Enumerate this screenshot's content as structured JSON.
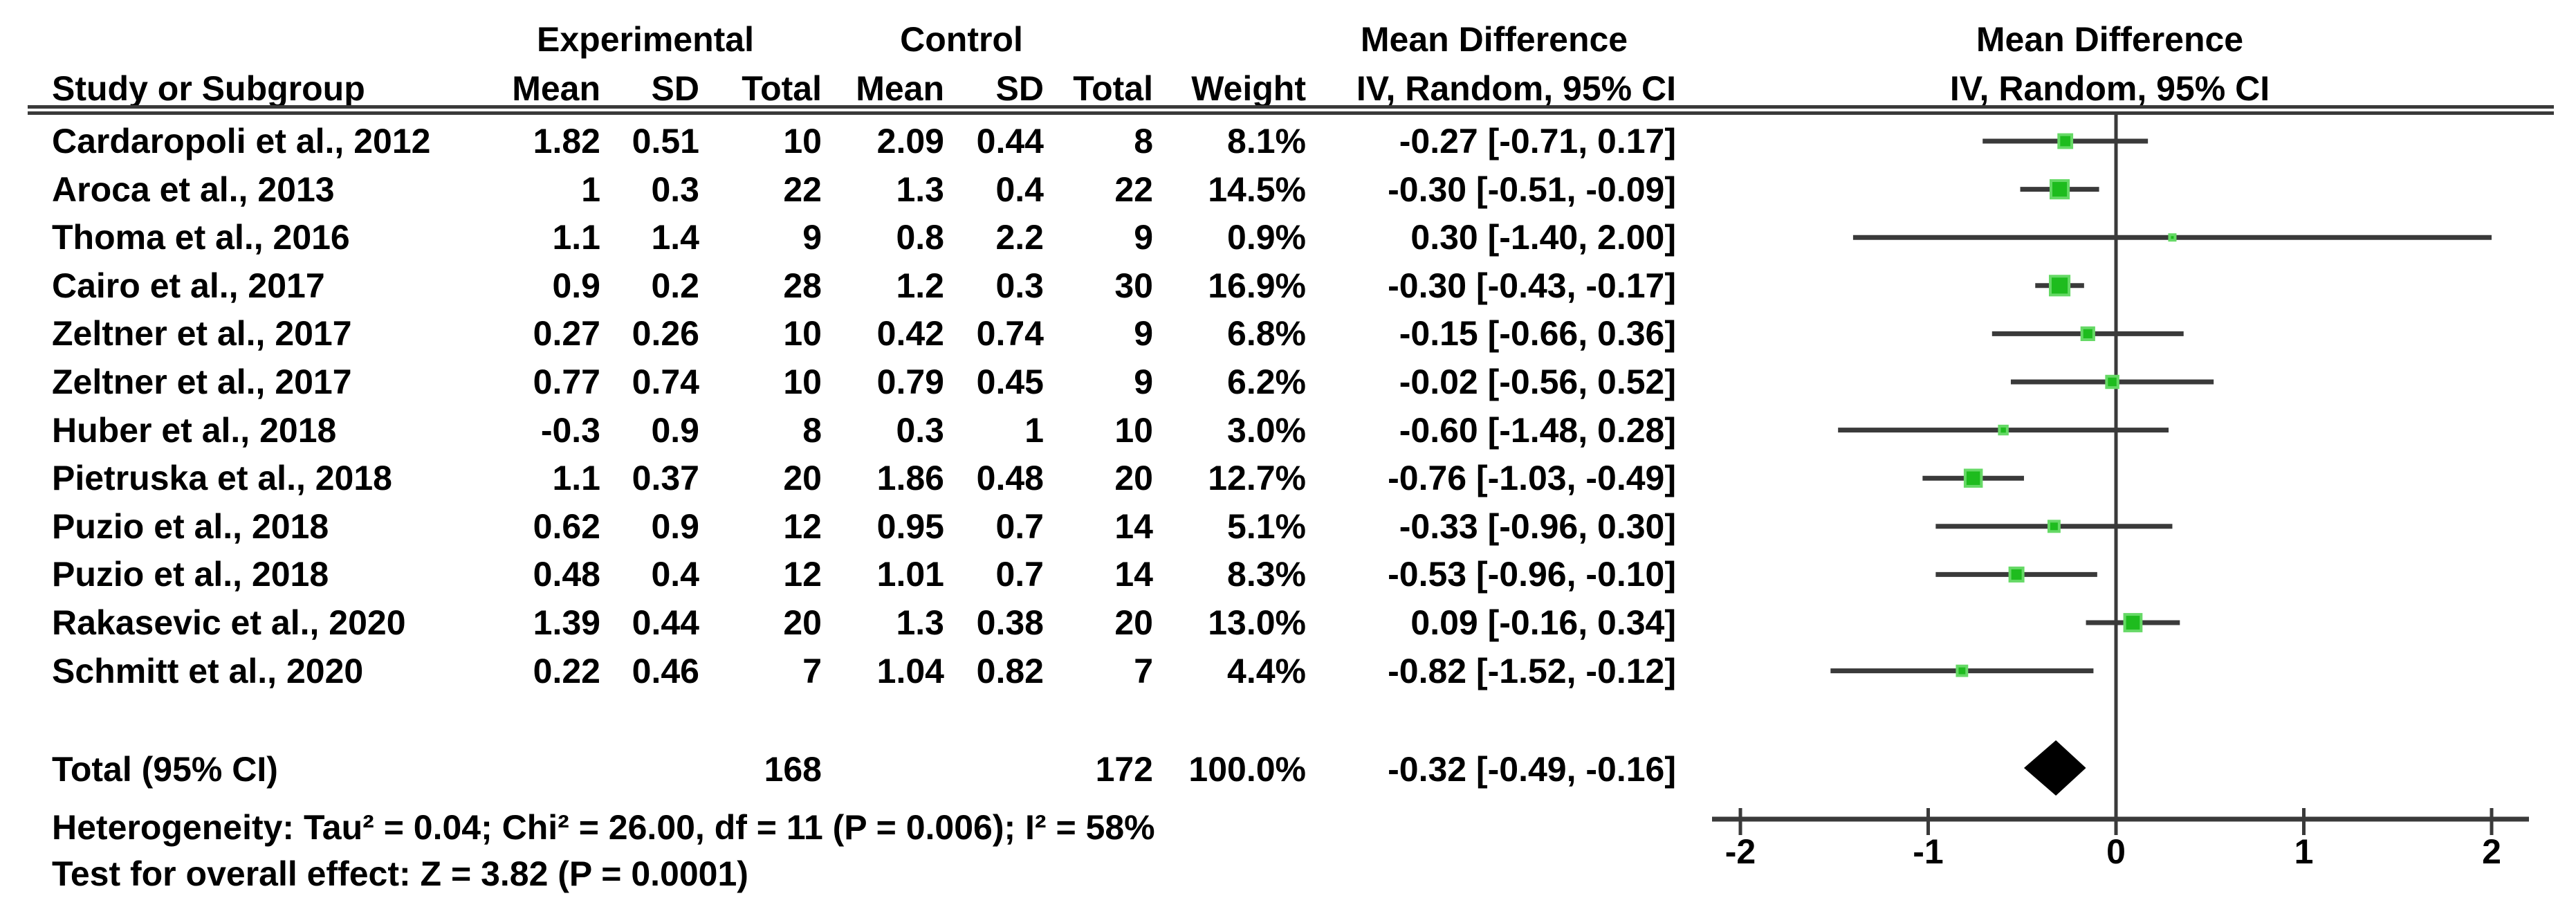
{
  "header": {
    "experimental": "Experimental",
    "control": "Control",
    "md_text": {
      "line1": "Mean Difference",
      "line2": "IV, Random, 95% CI"
    },
    "md_plot": {
      "line1": "Mean Difference",
      "line2": "IV, Random, 95% CI"
    },
    "study_col": "Study or Subgroup",
    "mean": "Mean",
    "sd": "SD",
    "total": "Total",
    "weight": "Weight"
  },
  "studies": [
    {
      "name": "Cardaropoli et al., 2012",
      "exp_mean": "1.82",
      "exp_sd": "0.51",
      "exp_total": "10",
      "ctrl_mean": "2.09",
      "ctrl_sd": "0.44",
      "ctrl_total": "8",
      "weight": "8.1%",
      "ci_text": "-0.27 [-0.71, 0.17]",
      "md": -0.27,
      "lo": -0.71,
      "hi": 0.17,
      "weight_value": 8.1
    },
    {
      "name": "Aroca et al., 2013",
      "exp_mean": "1",
      "exp_sd": "0.3",
      "exp_total": "22",
      "ctrl_mean": "1.3",
      "ctrl_sd": "0.4",
      "ctrl_total": "22",
      "weight": "14.5%",
      "ci_text": "-0.30 [-0.51, -0.09]",
      "md": -0.3,
      "lo": -0.51,
      "hi": -0.09,
      "weight_value": 14.5
    },
    {
      "name": "Thoma et al., 2016",
      "exp_mean": "1.1",
      "exp_sd": "1.4",
      "exp_total": "9",
      "ctrl_mean": "0.8",
      "ctrl_sd": "2.2",
      "ctrl_total": "9",
      "weight": "0.9%",
      "ci_text": "0.30 [-1.40, 2.00]",
      "md": 0.3,
      "lo": -1.4,
      "hi": 2.0,
      "weight_value": 0.9
    },
    {
      "name": "Cairo et al., 2017",
      "exp_mean": "0.9",
      "exp_sd": "0.2",
      "exp_total": "28",
      "ctrl_mean": "1.2",
      "ctrl_sd": "0.3",
      "ctrl_total": "30",
      "weight": "16.9%",
      "ci_text": "-0.30 [-0.43, -0.17]",
      "md": -0.3,
      "lo": -0.43,
      "hi": -0.17,
      "weight_value": 16.9
    },
    {
      "name": "Zeltner et al., 2017",
      "exp_mean": "0.27",
      "exp_sd": "0.26",
      "exp_total": "10",
      "ctrl_mean": "0.42",
      "ctrl_sd": "0.74",
      "ctrl_total": "9",
      "weight": "6.8%",
      "ci_text": "-0.15 [-0.66, 0.36]",
      "md": -0.15,
      "lo": -0.66,
      "hi": 0.36,
      "weight_value": 6.8
    },
    {
      "name": "Zeltner et al., 2017",
      "exp_mean": "0.77",
      "exp_sd": "0.74",
      "exp_total": "10",
      "ctrl_mean": "0.79",
      "ctrl_sd": "0.45",
      "ctrl_total": "9",
      "weight": "6.2%",
      "ci_text": "-0.02 [-0.56, 0.52]",
      "md": -0.02,
      "lo": -0.56,
      "hi": 0.52,
      "weight_value": 6.2
    },
    {
      "name": "Huber et al., 2018",
      "exp_mean": "-0.3",
      "exp_sd": "0.9",
      "exp_total": "8",
      "ctrl_mean": "0.3",
      "ctrl_sd": "1",
      "ctrl_total": "10",
      "weight": "3.0%",
      "ci_text": "-0.60 [-1.48, 0.28]",
      "md": -0.6,
      "lo": -1.48,
      "hi": 0.28,
      "weight_value": 3.0
    },
    {
      "name": "Pietruska et al., 2018",
      "exp_mean": "1.1",
      "exp_sd": "0.37",
      "exp_total": "20",
      "ctrl_mean": "1.86",
      "ctrl_sd": "0.48",
      "ctrl_total": "20",
      "weight": "12.7%",
      "ci_text": "-0.76 [-1.03, -0.49]",
      "md": -0.76,
      "lo": -1.03,
      "hi": -0.49,
      "weight_value": 12.7
    },
    {
      "name": "Puzio et al., 2018",
      "exp_mean": "0.62",
      "exp_sd": "0.9",
      "exp_total": "12",
      "ctrl_mean": "0.95",
      "ctrl_sd": "0.7",
      "ctrl_total": "14",
      "weight": "5.1%",
      "ci_text": "-0.33 [-0.96, 0.30]",
      "md": -0.33,
      "lo": -0.96,
      "hi": 0.3,
      "weight_value": 5.1
    },
    {
      "name": "Puzio et al., 2018",
      "exp_mean": "0.48",
      "exp_sd": "0.4",
      "exp_total": "12",
      "ctrl_mean": "1.01",
      "ctrl_sd": "0.7",
      "ctrl_total": "14",
      "weight": "8.3%",
      "ci_text": "-0.53 [-0.96, -0.10]",
      "md": -0.53,
      "lo": -0.96,
      "hi": -0.1,
      "weight_value": 8.3
    },
    {
      "name": "Rakasevic et al., 2020",
      "exp_mean": "1.39",
      "exp_sd": "0.44",
      "exp_total": "20",
      "ctrl_mean": "1.3",
      "ctrl_sd": "0.38",
      "ctrl_total": "20",
      "weight": "13.0%",
      "ci_text": "0.09 [-0.16, 0.34]",
      "md": 0.09,
      "lo": -0.16,
      "hi": 0.34,
      "weight_value": 13.0
    },
    {
      "name": "Schmitt et al., 2020",
      "exp_mean": "0.22",
      "exp_sd": "0.46",
      "exp_total": "7",
      "ctrl_mean": "1.04",
      "ctrl_sd": "0.82",
      "ctrl_total": "7",
      "weight": "4.4%",
      "ci_text": "-0.82 [-1.52, -0.12]",
      "md": -0.82,
      "lo": -1.52,
      "hi": -0.12,
      "weight_value": 4.4
    }
  ],
  "total_row": {
    "label": "Total (95% CI)",
    "exp_total": "168",
    "ctrl_total": "172",
    "weight": "100.0%",
    "ci_text": "-0.32 [-0.49, -0.16]",
    "md": -0.32,
    "lo": -0.49,
    "hi": -0.16
  },
  "footnotes": {
    "heterogeneity": "Heterogeneity: Tau² = 0.04; Chi² = 26.00, df = 11 (P = 0.006); I² = 58%",
    "overall_effect": "Test for overall effect: Z = 3.82 (P = 0.0001)"
  },
  "axis": {
    "tick_labels": [
      "-2",
      "-1",
      "0",
      "1",
      "2"
    ],
    "tick_values": [
      -2,
      -1,
      0,
      1,
      2
    ]
  },
  "colors": {
    "marker": "#1ebc1e",
    "marker_halo": "#66d966",
    "ci_line": "#3a3a3a",
    "diamond": "#000000",
    "axis": "#3a3a3a",
    "text": "#000000",
    "background": "#ffffff"
  },
  "chart_data": {
    "type": "scatter",
    "subtype": "forest-plot-meta-analysis",
    "title": "Mean Difference",
    "effect_model": "IV, Random, 95% CI",
    "xlabel": "",
    "x_ticks": [
      -2,
      -1,
      0,
      1,
      2
    ],
    "x_range": [
      -2.15,
      2.2
    ],
    "studies": [
      {
        "study": "Cardaropoli et al., 2012",
        "experimental": {
          "mean": 1.82,
          "sd": 0.51,
          "total": 10
        },
        "control": {
          "mean": 2.09,
          "sd": 0.44,
          "total": 8
        },
        "weight_pct": 8.1,
        "md": -0.27,
        "ci95": [
          -0.71,
          0.17
        ]
      },
      {
        "study": "Aroca et al., 2013",
        "experimental": {
          "mean": 1,
          "sd": 0.3,
          "total": 22
        },
        "control": {
          "mean": 1.3,
          "sd": 0.4,
          "total": 22
        },
        "weight_pct": 14.5,
        "md": -0.3,
        "ci95": [
          -0.51,
          -0.09
        ]
      },
      {
        "study": "Thoma et al., 2016",
        "experimental": {
          "mean": 1.1,
          "sd": 1.4,
          "total": 9
        },
        "control": {
          "mean": 0.8,
          "sd": 2.2,
          "total": 9
        },
        "weight_pct": 0.9,
        "md": 0.3,
        "ci95": [
          -1.4,
          2.0
        ]
      },
      {
        "study": "Cairo et al., 2017",
        "experimental": {
          "mean": 0.9,
          "sd": 0.2,
          "total": 28
        },
        "control": {
          "mean": 1.2,
          "sd": 0.3,
          "total": 30
        },
        "weight_pct": 16.9,
        "md": -0.3,
        "ci95": [
          -0.43,
          -0.17
        ]
      },
      {
        "study": "Zeltner et al., 2017",
        "experimental": {
          "mean": 0.27,
          "sd": 0.26,
          "total": 10
        },
        "control": {
          "mean": 0.42,
          "sd": 0.74,
          "total": 9
        },
        "weight_pct": 6.8,
        "md": -0.15,
        "ci95": [
          -0.66,
          0.36
        ]
      },
      {
        "study": "Zeltner et al., 2017",
        "experimental": {
          "mean": 0.77,
          "sd": 0.74,
          "total": 10
        },
        "control": {
          "mean": 0.79,
          "sd": 0.45,
          "total": 9
        },
        "weight_pct": 6.2,
        "md": -0.02,
        "ci95": [
          -0.56,
          0.52
        ]
      },
      {
        "study": "Huber et al., 2018",
        "experimental": {
          "mean": -0.3,
          "sd": 0.9,
          "total": 8
        },
        "control": {
          "mean": 0.3,
          "sd": 1,
          "total": 10
        },
        "weight_pct": 3.0,
        "md": -0.6,
        "ci95": [
          -1.48,
          0.28
        ]
      },
      {
        "study": "Pietruska et al., 2018",
        "experimental": {
          "mean": 1.1,
          "sd": 0.37,
          "total": 20
        },
        "control": {
          "mean": 1.86,
          "sd": 0.48,
          "total": 20
        },
        "weight_pct": 12.7,
        "md": -0.76,
        "ci95": [
          -1.03,
          -0.49
        ]
      },
      {
        "study": "Puzio et al., 2018",
        "experimental": {
          "mean": 0.62,
          "sd": 0.9,
          "total": 12
        },
        "control": {
          "mean": 0.95,
          "sd": 0.7,
          "total": 14
        },
        "weight_pct": 5.1,
        "md": -0.33,
        "ci95": [
          -0.96,
          0.3
        ]
      },
      {
        "study": "Puzio et al., 2018",
        "experimental": {
          "mean": 0.48,
          "sd": 0.4,
          "total": 12
        },
        "control": {
          "mean": 1.01,
          "sd": 0.7,
          "total": 14
        },
        "weight_pct": 8.3,
        "md": -0.53,
        "ci95": [
          -0.96,
          -0.1
        ]
      },
      {
        "study": "Rakasevic et al., 2020",
        "experimental": {
          "mean": 1.39,
          "sd": 0.44,
          "total": 20
        },
        "control": {
          "mean": 1.3,
          "sd": 0.38,
          "total": 20
        },
        "weight_pct": 13.0,
        "md": 0.09,
        "ci95": [
          -0.16,
          0.34
        ]
      },
      {
        "study": "Schmitt et al., 2020",
        "experimental": {
          "mean": 0.22,
          "sd": 0.46,
          "total": 7
        },
        "control": {
          "mean": 1.04,
          "sd": 0.82,
          "total": 7
        },
        "weight_pct": 4.4,
        "md": -0.82,
        "ci95": [
          -1.52,
          -0.12
        ]
      }
    ],
    "total": {
      "label": "Total (95% CI)",
      "experimental_total": 168,
      "control_total": 172,
      "weight_pct": 100.0,
      "md": -0.32,
      "ci95": [
        -0.49,
        -0.16
      ]
    },
    "heterogeneity": {
      "tau2": 0.04,
      "chi2": 26.0,
      "df": 11,
      "p": 0.006,
      "i2_pct": 58
    },
    "overall_effect": {
      "z": 3.82,
      "p": 0.0001
    },
    "legend_position": "none",
    "grid": false
  }
}
